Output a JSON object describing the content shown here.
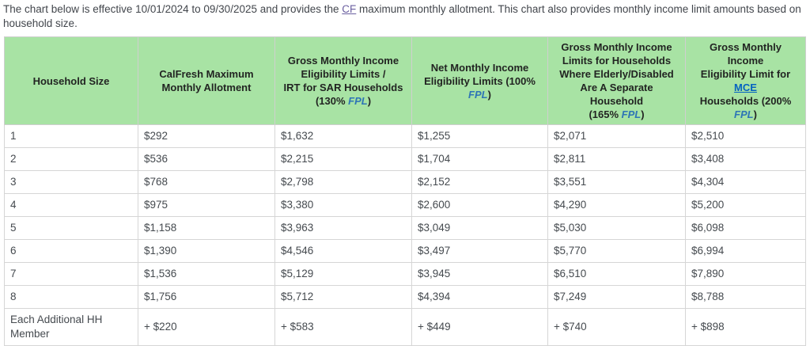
{
  "intro": {
    "segments": [
      {
        "text": "The chart below is effective 10/01/2024 to 09/30/2025 and provides the ",
        "style": "normal"
      },
      {
        "text": "CF",
        "style": "visited_link"
      },
      {
        "text": " maximum monthly allotment. This chart also provides monthly income limit amounts based on household size.",
        "style": "normal"
      }
    ]
  },
  "table": {
    "headers": [
      {
        "name": "household-size",
        "segments": [
          {
            "text": "Household Size",
            "style": "normal"
          }
        ]
      },
      {
        "name": "calfresh-max-allotment",
        "segments": [
          {
            "text": "CalFresh Maximum",
            "style": "normal"
          },
          {
            "style": "break"
          },
          {
            "text": "Monthly Allotment",
            "style": "normal"
          }
        ]
      },
      {
        "name": "gross-130-fpl",
        "segments": [
          {
            "text": "Gross Monthly Income",
            "style": "normal"
          },
          {
            "style": "break"
          },
          {
            "text": "Eligibility Limits /",
            "style": "normal"
          },
          {
            "style": "break"
          },
          {
            "text": "IRT for SAR Households",
            "style": "normal"
          },
          {
            "style": "break"
          },
          {
            "text": "(130% ",
            "style": "normal"
          },
          {
            "text": "FPL",
            "style": "fpl"
          },
          {
            "text": ")",
            "style": "normal"
          }
        ]
      },
      {
        "name": "net-100-fpl",
        "segments": [
          {
            "text": "Net Monthly Income",
            "style": "normal"
          },
          {
            "style": "break"
          },
          {
            "text": "Eligibility Limits (100% ",
            "style": "normal"
          },
          {
            "text": "FPL",
            "style": "fpl"
          },
          {
            "text": ")",
            "style": "normal"
          }
        ]
      },
      {
        "name": "gross-165-fpl",
        "segments": [
          {
            "text": "Gross Monthly Income",
            "style": "normal"
          },
          {
            "style": "break"
          },
          {
            "text": "Limits for Households",
            "style": "normal"
          },
          {
            "style": "break"
          },
          {
            "text": "Where Elderly/Disabled",
            "style": "normal"
          },
          {
            "style": "break"
          },
          {
            "text": "Are A Separate Household",
            "style": "normal"
          },
          {
            "style": "break"
          },
          {
            "text": "(165% ",
            "style": "normal"
          },
          {
            "text": "FPL",
            "style": "fpl"
          },
          {
            "text": ")",
            "style": "normal"
          }
        ]
      },
      {
        "name": "gross-200-fpl-mce",
        "segments": [
          {
            "text": "Gross Monthly Income",
            "style": "normal"
          },
          {
            "style": "break"
          },
          {
            "text": "Eligibility Limit for ",
            "style": "normal"
          },
          {
            "text": "MCE",
            "style": "link"
          },
          {
            "style": "break"
          },
          {
            "text": "Households (200% ",
            "style": "normal"
          },
          {
            "text": "FPL",
            "style": "fpl"
          },
          {
            "text": ")",
            "style": "normal"
          }
        ]
      }
    ],
    "rows": [
      [
        "1",
        "$292",
        "$1,632",
        "$1,255",
        "$2,071",
        "$2,510"
      ],
      [
        "2",
        "$536",
        "$2,215",
        "$1,704",
        "$2,811",
        "$3,408"
      ],
      [
        "3",
        "$768",
        "$2,798",
        "$2,152",
        "$3,551",
        "$4,304"
      ],
      [
        "4",
        "$975",
        "$3,380",
        "$2,600",
        "$4,290",
        "$5,200"
      ],
      [
        "5",
        "$1,158",
        "$3,963",
        "$3,049",
        "$5,030",
        "$6,098"
      ],
      [
        "6",
        "$1,390",
        "$4,546",
        "$3,497",
        "$5,770",
        "$6,994"
      ],
      [
        "7",
        "$1,536",
        "$5,129",
        "$3,945",
        "$6,510",
        "$7,890"
      ],
      [
        "8",
        "$1,756",
        "$5,712",
        "$4,394",
        "$7,249",
        "$8,788"
      ],
      [
        "Each Additional HH Member",
        "+ $220",
        "+ $583",
        "+ $449",
        "+ $740",
        "+ $898"
      ]
    ]
  },
  "colors": {
    "header_bg": "#a8e3a4",
    "fpl_text": "#2e75b6",
    "mce_link": "#0563c1",
    "cf_visited_link": "#6a5fa0",
    "body_text": "#454a4f",
    "border": "#cfcfcf"
  }
}
